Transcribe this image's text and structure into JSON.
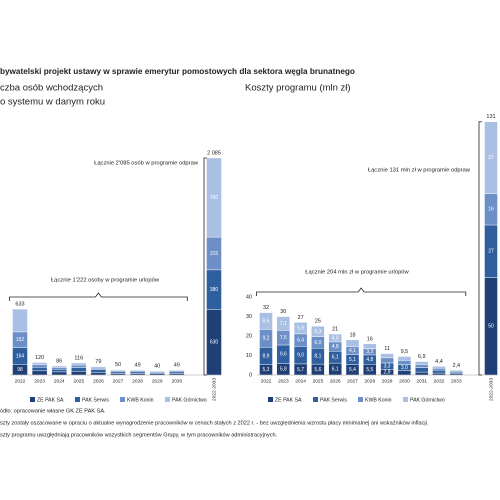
{
  "title": "bywatelski projekt ustawy w sprawie emerytur pomostowych dla sektora węgla brunatnego",
  "notes": [
    "ódło: opracowanie własne GK ZE PAK SA.",
    "szty zostały oszacowane w opraciu o aktualne wynagrodzenie pracowników w cenach stałych z 2022 r. - bez uwzględnienia wzrostu płacy minimalnej ani wskaźników inflacji.",
    "szty programu uwzględniają pracowników wszystkich segmentów Grupy, w tym pracowników administracyjnych."
  ],
  "chart_data": [
    {
      "type": "bar",
      "stacked": true,
      "subtitle": [
        "czba osób wchodzących",
        "o systemu w danym roku"
      ],
      "categories": [
        "2022",
        "2023",
        "2024",
        "2025",
        "2026",
        "2027",
        "2028",
        "2029",
        "2030",
        "2022-2033"
      ],
      "ylim": [
        0,
        2200
      ],
      "series": [
        {
          "name": "ZE PAK SA",
          "color": "#1f3f77",
          "values": [
            98,
            40,
            30,
            35,
            25,
            15,
            15,
            12,
            15,
            630
          ],
          "value_labels": [
            "98",
            null,
            null,
            null,
            null,
            null,
            null,
            null,
            null,
            "630"
          ]
        },
        {
          "name": "PAK Serwis",
          "color": "#2f5f9e",
          "values": [
            164,
            35,
            25,
            35,
            25,
            15,
            15,
            12,
            15,
            380
          ],
          "value_labels": [
            "164",
            null,
            null,
            null,
            null,
            null,
            null,
            null,
            null,
            "380"
          ]
        },
        {
          "name": "KWB Konin",
          "color": "#6c8fc7",
          "values": [
            152,
            25,
            18,
            26,
            16,
            12,
            11,
            9,
            11,
            315
          ],
          "value_labels": [
            "152",
            null,
            null,
            null,
            null,
            null,
            null,
            null,
            null,
            "315"
          ]
        },
        {
          "name": "PAK Górnictwo",
          "color": "#a9bfe3",
          "values": [
            219,
            20,
            13,
            20,
            13,
            8,
            8,
            7,
            8,
            760
          ],
          "value_labels": [
            null,
            null,
            null,
            null,
            null,
            null,
            null,
            null,
            null,
            "760"
          ]
        }
      ],
      "total_labels": [
        "633",
        "120",
        "86",
        "116",
        "79",
        "50",
        "49",
        "40",
        "49",
        "2 085"
      ],
      "annotations": [
        "Łącznie 2'085 osób w programie odpraw",
        "Łącznie 1'222 osoby w programie urlopów"
      ]
    },
    {
      "type": "bar",
      "stacked": true,
      "subtitle": [
        "Koszty programu (mln zł)"
      ],
      "categories": [
        "2022",
        "2023",
        "2024",
        "2025",
        "2026",
        "2027",
        "2028",
        "2029",
        "2030",
        "2031",
        "2032",
        "2033",
        "2022-2033"
      ],
      "ylim": [
        0,
        135
      ],
      "yticks": [
        0,
        10,
        20,
        30,
        40
      ],
      "series": [
        {
          "name": "ZE PAK SA",
          "color": "#1f3f77",
          "values": [
            5.3,
            5.8,
            5.7,
            5.6,
            6.1,
            5.4,
            5.5,
            2.9,
            2.3,
            1.5,
            1.0,
            0.6,
            50
          ],
          "value_labels": [
            "5,3",
            "5,8",
            "5,7",
            "5,6",
            "6,1",
            "5,4",
            "5,5",
            "2,9",
            null,
            null,
            null,
            null,
            "50"
          ]
        },
        {
          "name": "PAK Serwis",
          "color": "#2f5f9e",
          "values": [
            8.9,
            9.6,
            9.0,
            8.1,
            6.1,
            5.1,
            4.8,
            3.3,
            3.0,
            2.3,
            1.5,
            0.8,
            27
          ],
          "value_labels": [
            "8,9",
            "9,6",
            "9,0",
            "8,1",
            "6,1",
            "5,1",
            "4,8",
            "3,3",
            "3,0",
            null,
            null,
            null,
            "27"
          ]
        },
        {
          "name": "KWB Konin",
          "color": "#6c8fc7",
          "values": [
            9.2,
            7.5,
            6.4,
            6.0,
            4.8,
            4.1,
            3.2,
            2.6,
            2.2,
            1.6,
            1.0,
            0.5,
            16
          ],
          "value_labels": [
            "9,2",
            "7,5",
            "6,4",
            "6,0",
            "4,8",
            "4,1",
            "3,2",
            null,
            null,
            null,
            null,
            null,
            "16"
          ]
        },
        {
          "name": "PAK Górnictwo",
          "color": "#a9bfe3",
          "values": [
            8.6,
            7.1,
            5.9,
            5.3,
            4.0,
            3.4,
            2.5,
            2.2,
            2.0,
            1.5,
            0.9,
            0.5,
            37
          ],
          "value_labels": [
            "8,6",
            "7,1",
            "5,9",
            "5,3",
            "4,0",
            null,
            null,
            null,
            null,
            null,
            null,
            null,
            "37"
          ]
        }
      ],
      "total_labels": [
        "32",
        "30",
        "27",
        "25",
        "21",
        "18",
        "16",
        "11",
        "9,5",
        "6,9",
        "4,4",
        "2,4",
        "131"
      ],
      "annotations": [
        "Łącznie 131 mln zł w programie odpraw",
        "Łącznie 204 mln zł w programie urlopów"
      ]
    }
  ]
}
